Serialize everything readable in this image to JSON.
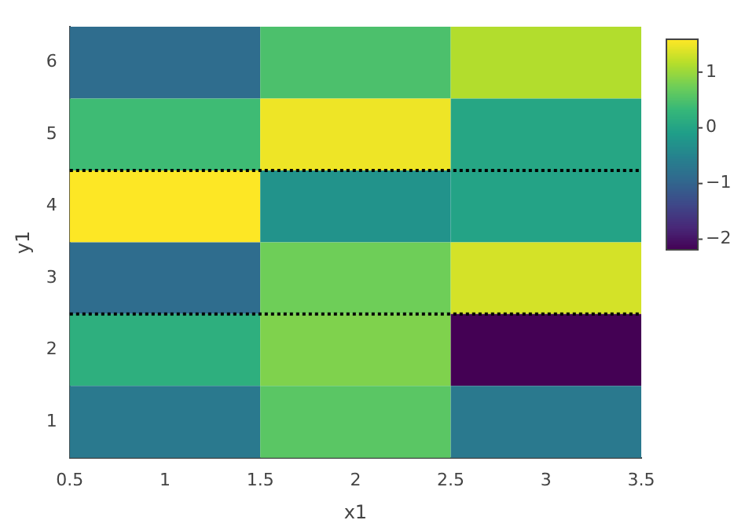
{
  "chart_data": {
    "type": "heatmap",
    "xlabel": "x1",
    "ylabel": "y1",
    "x": [
      1,
      2,
      3
    ],
    "cells": [
      [
        -0.85,
        0.5,
        1.15
      ],
      [
        0.4,
        1.5,
        0.05
      ],
      [
        1.59,
        -0.25,
        0.0
      ],
      [
        -0.85,
        0.75,
        1.35
      ],
      [
        0.2,
        0.85,
        -2.19
      ],
      [
        -0.65,
        0.6,
        -0.65
      ]
    ],
    "xlim": [
      0.5,
      3.5
    ],
    "xticks": [
      0.5,
      1,
      1.5,
      2,
      2.5,
      3,
      3.5
    ],
    "ylim": [
      0.5,
      6.5
    ],
    "yticks": [
      1,
      2,
      3,
      4,
      5,
      6
    ],
    "clim": [
      -2.19,
      1.59
    ],
    "cticks": [
      -2,
      -1,
      0,
      1
    ],
    "ref_lines": [
      {
        "axis": "y",
        "value": 2.5,
        "color": "#000000",
        "line_style": "dotted"
      },
      {
        "axis": "y",
        "value": 4.5,
        "color": "#000000",
        "line_style": "dotted"
      }
    ],
    "grid": false
  }
}
